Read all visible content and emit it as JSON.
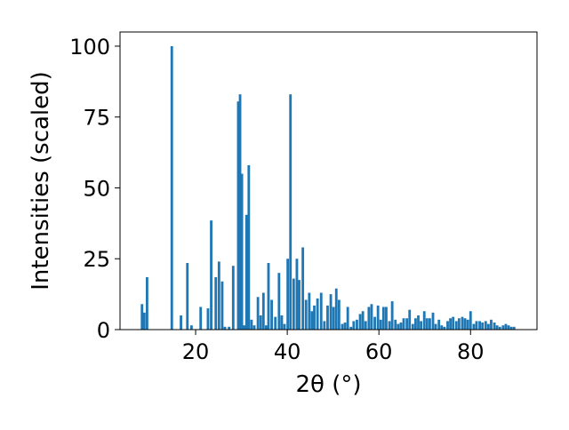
{
  "chart_data": {
    "type": "bar",
    "title": "",
    "xlabel": "2θ (°)",
    "ylabel": "Intensities (scaled)",
    "xlim": [
      3.5,
      94.5
    ],
    "ylim": [
      0,
      105
    ],
    "xticks": [
      20,
      40,
      60,
      80
    ],
    "yticks": [
      0,
      25,
      50,
      75,
      100
    ],
    "grid": false,
    "bar_color": "#1f77b4",
    "bar_width": 0.55,
    "x": [
      8.3,
      8.8,
      9.4,
      14.8,
      16.8,
      18.2,
      19.1,
      21.1,
      22.7,
      23.4,
      24.4,
      25.1,
      25.8,
      26.4,
      27.3,
      28.2,
      29.3,
      29.7,
      30.1,
      30.6,
      31.1,
      31.6,
      32.2,
      32.8,
      33.6,
      34.2,
      34.8,
      35.4,
      35.9,
      36.6,
      37.4,
      38.2,
      38.8,
      39.4,
      40.1,
      40.7,
      41.4,
      42.1,
      42.6,
      43.4,
      44.1,
      44.8,
      45.4,
      45.9,
      46.6,
      47.4,
      48.1,
      48.8,
      49.5,
      50.1,
      50.7,
      51.3,
      52.0,
      52.6,
      53.2,
      53.9,
      54.5,
      55.2,
      55.9,
      56.5,
      57.1,
      57.8,
      58.4,
      59.1,
      59.8,
      60.4,
      61.0,
      61.6,
      62.3,
      62.9,
      63.6,
      64.2,
      64.8,
      65.4,
      66.1,
      66.7,
      67.4,
      68.0,
      68.6,
      69.2,
      69.9,
      70.5,
      71.1,
      71.8,
      72.4,
      73.1,
      73.7,
      74.3,
      75.0,
      75.6,
      76.2,
      76.9,
      77.5,
      78.2,
      78.8,
      79.4,
      80.0,
      80.7,
      81.3,
      82.0,
      82.6,
      83.3,
      83.9,
      84.5,
      85.2,
      85.8,
      86.4,
      87.1,
      87.7,
      88.3,
      88.9,
      89.5
    ],
    "values": [
      9,
      6,
      18.5,
      100,
      5,
      23.5,
      1.5,
      8,
      7.5,
      38.5,
      18.5,
      24,
      17,
      1,
      1,
      22.5,
      80.5,
      83,
      55,
      1.5,
      40.5,
      58,
      3.5,
      1.5,
      11.5,
      5,
      13,
      1.5,
      23.5,
      10.5,
      4.5,
      20,
      5,
      2,
      25,
      83,
      18,
      25,
      17.5,
      29,
      10.5,
      13,
      6.5,
      8.5,
      11,
      13,
      3,
      8.5,
      12.5,
      8,
      14.5,
      10.5,
      2,
      2.5,
      8,
      1,
      3,
      3.5,
      5.5,
      6.5,
      3,
      8,
      9,
      4.5,
      8.5,
      3.5,
      8,
      8,
      3,
      10,
      3.5,
      2,
      2.5,
      4,
      4,
      7,
      2,
      4,
      5,
      3,
      6.5,
      4,
      4,
      6,
      2,
      3.5,
      1.5,
      1,
      3,
      4,
      4.5,
      3,
      4,
      4.5,
      4,
      3.5,
      6.5,
      2,
      3,
      3,
      2.5,
      3,
      2,
      3.5,
      2.5,
      1.5,
      1,
      1.5,
      2,
      1.5,
      1,
      1
    ]
  }
}
